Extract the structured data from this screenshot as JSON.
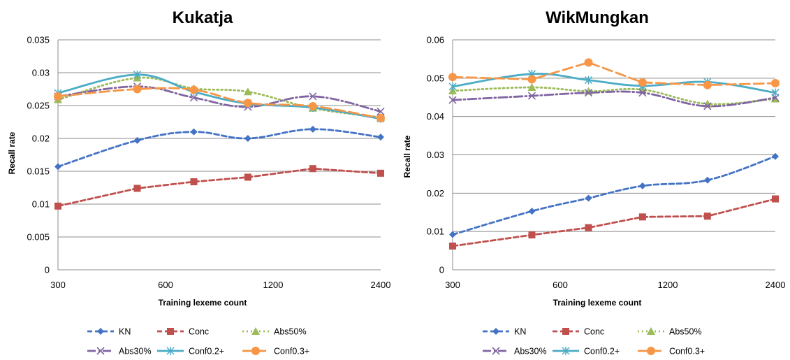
{
  "colors": {
    "KN": "#4472C4",
    "Conc": "#C0504D",
    "Abs50%": "#9BBB59",
    "Abs30%": "#8064A2",
    "Conf0.2+": "#4BACC6",
    "Conf0.3+": "#F79646",
    "grid": "#8c8c8c",
    "axis": "#8c8c8c"
  },
  "chart_data": [
    {
      "type": "line",
      "title": "Kukatja",
      "xlabel": "Training lexeme count",
      "ylabel": "Recall rate",
      "x_scale": "log2",
      "xlim": [
        300,
        2400
      ],
      "x_ticks": [
        300,
        600,
        1200,
        2400
      ],
      "x_tick_labels": [
        "300",
        "600",
        "1200",
        "2400"
      ],
      "ylim": [
        0,
        0.035
      ],
      "y_ticks": [
        0,
        0.005,
        0.01,
        0.015,
        0.02,
        0.025,
        0.03,
        0.035
      ],
      "y_tick_labels": [
        "0",
        "0.005",
        "0.01",
        "0.015",
        "0.02",
        "0.025",
        "0.03",
        "0.035"
      ],
      "x": [
        300,
        500,
        720,
        1020,
        1550,
        2400
      ],
      "grid": "horizontal",
      "legend_position": "bottom",
      "series": [
        {
          "name": "KN",
          "values": [
            0.0157,
            0.0197,
            0.021,
            0.02,
            0.0214,
            0.0202
          ],
          "style": "dashed",
          "marker": "diamond",
          "curved": true
        },
        {
          "name": "Conc",
          "values": [
            0.0097,
            0.0124,
            0.0134,
            0.0141,
            0.0154,
            0.0147
          ],
          "style": "dashed",
          "marker": "square",
          "curved": false
        },
        {
          "name": "Abs50%",
          "values": [
            0.0259,
            0.0292,
            0.0276,
            0.0271,
            0.0246,
            0.0232
          ],
          "style": "dotted",
          "marker": "triangle",
          "curved": true
        },
        {
          "name": "Abs30%",
          "values": [
            0.0264,
            0.0279,
            0.0262,
            0.0248,
            0.0264,
            0.0241
          ],
          "style": "dashdot",
          "marker": "x",
          "curved": true
        },
        {
          "name": "Conf0.2+",
          "values": [
            0.0269,
            0.0297,
            0.0271,
            0.0253,
            0.0247,
            0.023
          ],
          "style": "solid",
          "marker": "star",
          "curved": true
        },
        {
          "name": "Conf0.3+",
          "values": [
            0.0264,
            0.0275,
            0.0274,
            0.0254,
            0.0249,
            0.0231
          ],
          "style": "longdash",
          "marker": "circle",
          "curved": true
        }
      ],
      "legend_rows": [
        [
          "KN",
          "Conc",
          "Abs50%"
        ],
        [
          "Abs30%",
          "Conf0.2+",
          "Conf0.3+"
        ]
      ]
    },
    {
      "type": "line",
      "title": "WikMungkan",
      "xlabel": "Training lexeme count",
      "ylabel": "Recall rate",
      "x_scale": "log2",
      "xlim": [
        300,
        2400
      ],
      "x_ticks": [
        300,
        600,
        1200,
        2400
      ],
      "x_tick_labels": [
        "300",
        "600",
        "1200",
        "2400"
      ],
      "ylim": [
        0,
        0.06
      ],
      "y_ticks": [
        0,
        0.01,
        0.02,
        0.03,
        0.04,
        0.05,
        0.06
      ],
      "y_tick_labels": [
        "0",
        "0.01",
        "0.02",
        "0.03",
        "0.04",
        "0.05",
        "0.06"
      ],
      "x": [
        300,
        500,
        720,
        1020,
        1550,
        2400
      ],
      "grid": "horizontal",
      "legend_position": "bottom",
      "series": [
        {
          "name": "KN",
          "values": [
            0.0092,
            0.0153,
            0.0187,
            0.0219,
            0.0234,
            0.0296
          ],
          "style": "dashed",
          "marker": "diamond",
          "curved": true
        },
        {
          "name": "Conc",
          "values": [
            0.0062,
            0.0091,
            0.011,
            0.0138,
            0.014,
            0.0185
          ],
          "style": "dashed",
          "marker": "square",
          "curved": false
        },
        {
          "name": "Abs50%",
          "values": [
            0.0467,
            0.0476,
            0.0466,
            0.047,
            0.0433,
            0.0446
          ],
          "style": "dotted",
          "marker": "triangle",
          "curved": true
        },
        {
          "name": "Abs30%",
          "values": [
            0.0443,
            0.0454,
            0.0462,
            0.0462,
            0.0427,
            0.0449
          ],
          "style": "dashdot",
          "marker": "x",
          "curved": true
        },
        {
          "name": "Conf0.2+",
          "values": [
            0.0478,
            0.0511,
            0.0495,
            0.048,
            0.049,
            0.0462
          ],
          "style": "solid",
          "marker": "star",
          "curved": true
        },
        {
          "name": "Conf0.3+",
          "values": [
            0.0503,
            0.0497,
            0.0541,
            0.0489,
            0.0482,
            0.0487
          ],
          "style": "longdash",
          "marker": "circle",
          "curved": false
        }
      ],
      "legend_rows": [
        [
          "KN",
          "Conc",
          "Abs50%"
        ],
        [
          "Abs30%",
          "Conf0.2+",
          "Conf0.3+"
        ]
      ]
    }
  ]
}
